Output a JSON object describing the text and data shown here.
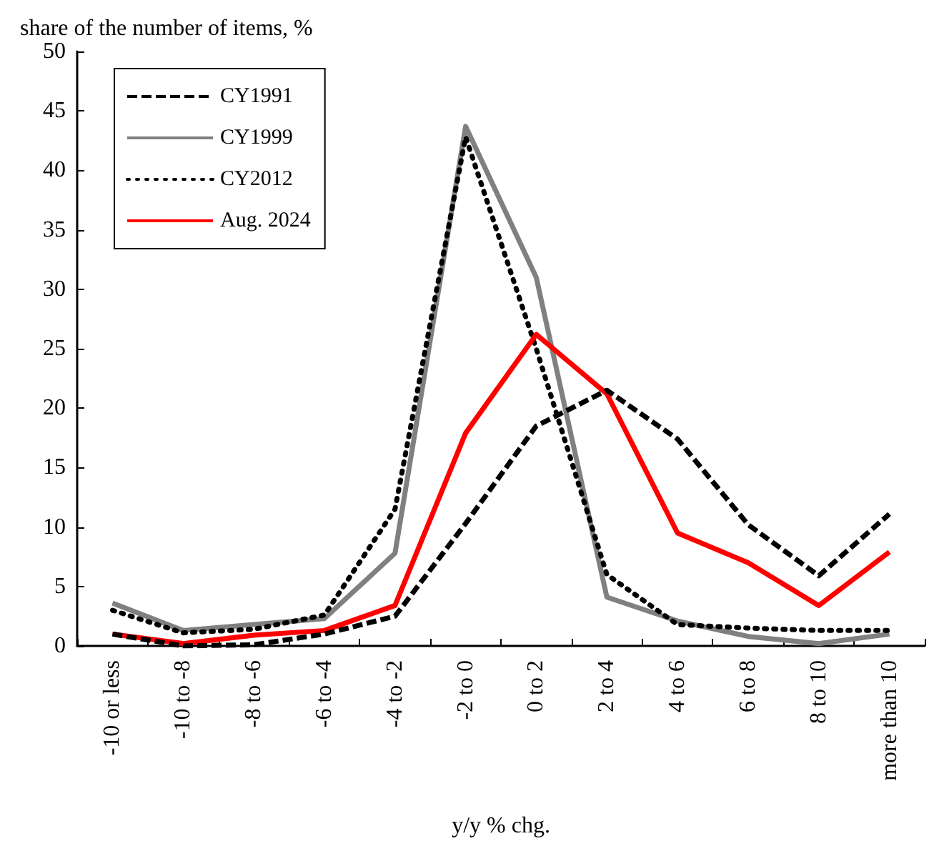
{
  "chart_data": {
    "type": "line",
    "ylabel": "share of the number of items, %",
    "xlabel": "y/y % chg.",
    "categories": [
      "-10 or less",
      "-10 to -8",
      "-8 to -6",
      "-6 to -4",
      "-4 to -2",
      "-2 to 0",
      "0 to 2",
      "2 to 4",
      "4 to 6",
      "6 to 8",
      "8 to 10",
      "more than 10"
    ],
    "series": [
      {
        "name": "CY1991",
        "color": "#000000",
        "line_style": "dashed",
        "values": [
          1.0,
          0.0,
          0.1,
          1.0,
          2.5,
          10.3,
          18.5,
          21.5,
          17.4,
          10.2,
          5.9,
          11.1
        ]
      },
      {
        "name": "CY1999",
        "color": "#808080",
        "line_style": "solid",
        "values": [
          3.6,
          1.3,
          1.8,
          2.3,
          7.8,
          43.7,
          31.0,
          4.1,
          2.1,
          0.8,
          0.2,
          1.0
        ]
      },
      {
        "name": "CY2012",
        "color": "#000000",
        "line_style": "dotted",
        "values": [
          3.0,
          1.1,
          1.4,
          2.6,
          11.5,
          42.8,
          25.0,
          6.0,
          1.8,
          1.5,
          1.3,
          1.3
        ]
      },
      {
        "name": "Aug. 2024",
        "color": "#ff0000",
        "line_style": "solid",
        "values": [
          1.0,
          0.2,
          0.9,
          1.3,
          3.4,
          17.9,
          26.2,
          21.2,
          9.5,
          7.0,
          3.4,
          7.9
        ]
      }
    ],
    "ylim": [
      0,
      50
    ],
    "yticks": [
      0,
      5,
      10,
      15,
      20,
      25,
      30,
      35,
      40,
      45,
      50
    ],
    "grid": false,
    "legend": "top left",
    "marker": "none"
  }
}
